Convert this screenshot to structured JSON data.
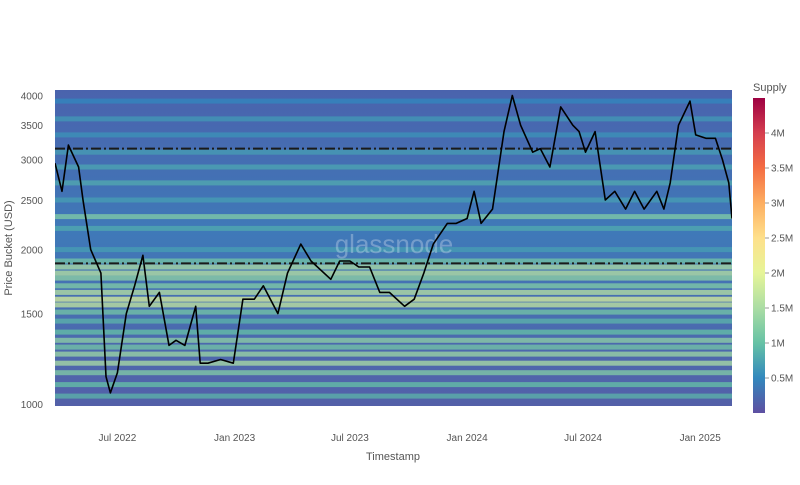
{
  "chart_data": {
    "type": "heatmap",
    "title": "",
    "xlabel": "Timestamp",
    "ylabel": "Price Bucket (USD)",
    "y_scale": "log",
    "ylim": [
      990,
      4100
    ],
    "xlim": [
      "2022-03-25",
      "2025-02-20"
    ],
    "x_ticks": [
      {
        "date": "2022-07-01",
        "label": "Jul 2022"
      },
      {
        "date": "2023-01-01",
        "label": "Jan 2023"
      },
      {
        "date": "2023-07-01",
        "label": "Jul 2023"
      },
      {
        "date": "2024-01-01",
        "label": "Jan 2024"
      },
      {
        "date": "2024-07-01",
        "label": "Jul 2024"
      },
      {
        "date": "2025-01-01",
        "label": "Jan 2025"
      }
    ],
    "y_ticks": [
      {
        "value": 1000,
        "label": "1000"
      },
      {
        "value": 1500,
        "label": "1500"
      },
      {
        "value": 2000,
        "label": "2000"
      },
      {
        "value": 2500,
        "label": "2500"
      },
      {
        "value": 3000,
        "label": "3000"
      },
      {
        "value": 3500,
        "label": "3500"
      },
      {
        "value": 4000,
        "label": "4000"
      }
    ],
    "colorbar": {
      "title": "Supply",
      "min": 0,
      "max": 4500000,
      "ticks": [
        {
          "value": 500000,
          "label": "0.5M"
        },
        {
          "value": 1000000,
          "label": "1M"
        },
        {
          "value": 1500000,
          "label": "1.5M"
        },
        {
          "value": 2000000,
          "label": "2M"
        },
        {
          "value": 2500000,
          "label": "2.5M"
        },
        {
          "value": 3000000,
          "label": "3M"
        },
        {
          "value": 3500000,
          "label": "3.5M"
        },
        {
          "value": 4000000,
          "label": "4M"
        }
      ],
      "colors": [
        "#5e4fa2",
        "#3288bd",
        "#66c2a5",
        "#abdda4",
        "#e6f598",
        "#fee08b",
        "#fdae61",
        "#f46d43",
        "#d53e4f",
        "#9e0142"
      ]
    },
    "reference_lines": [
      {
        "value": 3150,
        "style": "dash-dot"
      },
      {
        "value": 1880,
        "style": "dash-dot"
      }
    ],
    "supply_bands": [
      {
        "price": 1035,
        "value": 900000
      },
      {
        "price": 1090,
        "value": 1000000
      },
      {
        "price": 1150,
        "value": 1200000
      },
      {
        "price": 1200,
        "value": 1500000
      },
      {
        "price": 1250,
        "value": 1400000
      },
      {
        "price": 1290,
        "value": 1100000
      },
      {
        "price": 1330,
        "value": 1300000
      },
      {
        "price": 1380,
        "value": 1000000
      },
      {
        "price": 1450,
        "value": 900000
      },
      {
        "price": 1510,
        "value": 1100000
      },
      {
        "price": 1560,
        "value": 1700000
      },
      {
        "price": 1600,
        "value": 1900000
      },
      {
        "price": 1650,
        "value": 1600000
      },
      {
        "price": 1700,
        "value": 1200000
      },
      {
        "price": 1760,
        "value": 1300000
      },
      {
        "price": 1800,
        "value": 1600000
      },
      {
        "price": 1850,
        "value": 1500000
      },
      {
        "price": 1900,
        "value": 1100000
      },
      {
        "price": 2000,
        "value": 700000
      },
      {
        "price": 2200,
        "value": 800000
      },
      {
        "price": 2320,
        "value": 1200000
      },
      {
        "price": 2500,
        "value": 700000
      },
      {
        "price": 2700,
        "value": 800000
      },
      {
        "price": 2900,
        "value": 750000
      },
      {
        "price": 3100,
        "value": 700000
      },
      {
        "price": 3350,
        "value": 600000
      },
      {
        "price": 3600,
        "value": 650000
      },
      {
        "price": 3900,
        "value": 500000
      }
    ],
    "x": [
      "2022-03-25",
      "2022-04-05",
      "2022-04-15",
      "2022-05-01",
      "2022-05-08",
      "2022-05-20",
      "2022-06-05",
      "2022-06-13",
      "2022-06-20",
      "2022-07-01",
      "2022-07-15",
      "2022-07-28",
      "2022-08-10",
      "2022-08-20",
      "2022-09-05",
      "2022-09-20",
      "2022-10-01",
      "2022-10-15",
      "2022-11-01",
      "2022-11-08",
      "2022-11-20",
      "2022-12-10",
      "2022-12-30",
      "2023-01-14",
      "2023-02-01",
      "2023-02-15",
      "2023-03-10",
      "2023-03-25",
      "2023-04-15",
      "2023-05-01",
      "2023-06-01",
      "2023-06-15",
      "2023-07-01",
      "2023-07-15",
      "2023-08-01",
      "2023-08-17",
      "2023-09-01",
      "2023-09-25",
      "2023-10-10",
      "2023-10-25",
      "2023-11-09",
      "2023-12-01",
      "2023-12-15",
      "2024-01-01",
      "2024-01-12",
      "2024-01-23",
      "2024-02-10",
      "2024-02-28",
      "2024-03-12",
      "2024-03-25",
      "2024-04-13",
      "2024-04-25",
      "2024-05-10",
      "2024-05-27",
      "2024-06-15",
      "2024-06-25",
      "2024-07-05",
      "2024-07-20",
      "2024-08-05",
      "2024-08-20",
      "2024-09-06",
      "2024-09-20",
      "2024-10-05",
      "2024-10-25",
      "2024-11-05",
      "2024-11-15",
      "2024-11-28",
      "2024-12-16",
      "2024-12-25",
      "2025-01-10",
      "2025-01-25",
      "2025-02-05",
      "2025-02-15",
      "2025-02-20"
    ],
    "series": [
      {
        "values": [
          2950,
          2600,
          3200,
          2900,
          2500,
          2000,
          1800,
          1130,
          1050,
          1150,
          1500,
          1700,
          1950,
          1550,
          1650,
          1300,
          1330,
          1300,
          1550,
          1200,
          1200,
          1220,
          1200,
          1600,
          1600,
          1700,
          1500,
          1800,
          2050,
          1900,
          1750,
          1900,
          1900,
          1850,
          1850,
          1650,
          1650,
          1550,
          1600,
          1800,
          2050,
          2250,
          2250,
          2300,
          2600,
          2250,
          2400,
          3400,
          4000,
          3500,
          3100,
          3150,
          2900,
          3800,
          3500,
          3400,
          3100,
          3400,
          2500,
          2600,
          2400,
          2600,
          2400,
          2600,
          2400,
          2700,
          3500,
          3900,
          3350,
          3300,
          3300,
          3000,
          2700,
          2300
        ]
      }
    ]
  }
}
